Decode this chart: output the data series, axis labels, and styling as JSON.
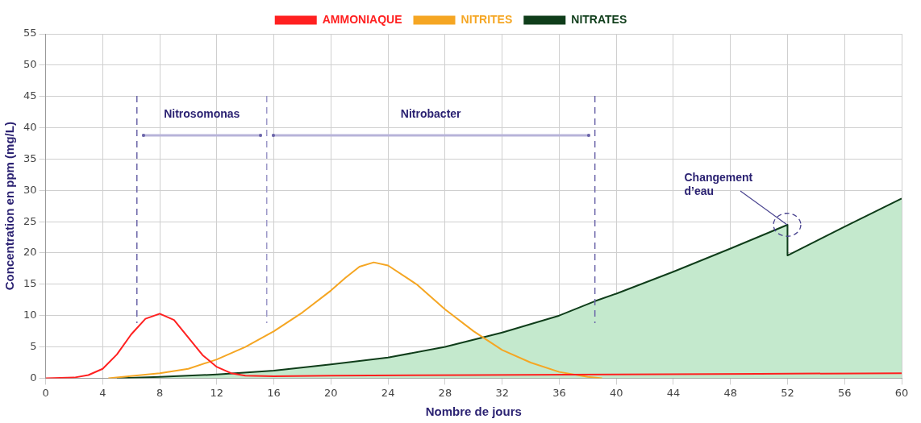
{
  "chart_data": {
    "type": "line",
    "xlabel": "Nombre de jours",
    "ylabel": "Concentration en ppm (mg/L)",
    "xlim": [
      0,
      60
    ],
    "xticks": [
      0,
      4,
      8,
      12,
      16,
      20,
      24,
      28,
      32,
      36,
      40,
      44,
      48,
      52,
      56,
      60
    ],
    "ylim": [
      0,
      55
    ],
    "yticks": [
      0,
      5,
      10,
      15,
      20,
      25,
      30,
      35,
      40,
      45,
      50,
      55
    ],
    "grid": true,
    "legend": "top",
    "marker": "none",
    "line_style": "solid",
    "series": [
      {
        "name": "AMMONIAQUE",
        "color": "#ff2020",
        "x": [
          0,
          2,
          3,
          4,
          5,
          6,
          7,
          8,
          9,
          10,
          11,
          12,
          13,
          14,
          16,
          20,
          30,
          40,
          50,
          60
        ],
        "values": [
          0,
          0.1,
          0.5,
          1.5,
          3.8,
          7,
          9.5,
          10.3,
          9.3,
          6.5,
          3.7,
          1.8,
          0.8,
          0.4,
          0.3,
          0.4,
          0.5,
          0.6,
          0.7,
          0.8
        ]
      },
      {
        "name": "NITRITES",
        "color": "#f5a623",
        "x": [
          4.4,
          8,
          10,
          12,
          14,
          16,
          18,
          20,
          21,
          22,
          23,
          24,
          26,
          28,
          30,
          32,
          34,
          36,
          38,
          39
        ],
        "values": [
          0,
          0.8,
          1.5,
          3,
          5,
          7.5,
          10.5,
          14,
          16,
          17.8,
          18.5,
          18,
          15,
          11,
          7.5,
          4.5,
          2.5,
          1,
          0.2,
          0
        ]
      },
      {
        "name": "NITRATES",
        "type": "area",
        "color": "#0f3d1a",
        "x": [
          5,
          8,
          12,
          16,
          20,
          24,
          28,
          32,
          36,
          38.5,
          40,
          44,
          48,
          52,
          52,
          56,
          60
        ],
        "values": [
          0,
          0.2,
          0.6,
          1.2,
          2.2,
          3.3,
          5,
          7.3,
          10,
          12.3,
          13.5,
          17,
          20.7,
          24.5,
          19.6,
          24.2,
          28.7
        ]
      }
    ],
    "ref_lines": [
      {
        "axis": "x",
        "value": 6.4,
        "color": "#6a64a8",
        "line_style": "dashed"
      },
      {
        "axis": "x",
        "value": 15.5,
        "color": "#9d99c9",
        "line_style": "dashed"
      },
      {
        "axis": "x",
        "value": 38.5,
        "color": "#6a64a8",
        "line_style": "dashed"
      }
    ],
    "annotations": [
      "Nitrosomonas",
      "Nitrobacter",
      {
        "text": "Changement\nd’eau",
        "x": 52,
        "y": 24.5
      }
    ]
  }
}
